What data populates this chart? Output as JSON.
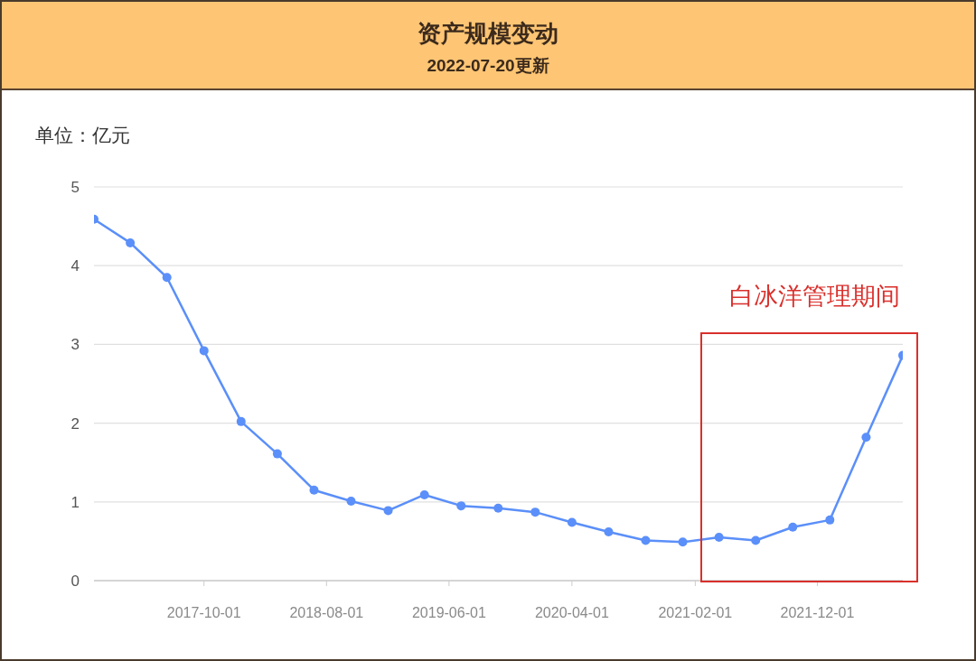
{
  "chart_data": {
    "type": "line",
    "title": "资产规模变动",
    "subtitle": "2022-07-20更新",
    "ylabel": "单位：亿元",
    "x": [
      "2017-01-01",
      "2017-04-01",
      "2017-07-01",
      "2017-10-01",
      "2018-01-01",
      "2018-04-01",
      "2018-07-01",
      "2018-10-01",
      "2019-01-01",
      "2019-04-01",
      "2019-07-01",
      "2019-10-01",
      "2020-01-01",
      "2020-04-01",
      "2020-07-01",
      "2020-10-01",
      "2021-01-01",
      "2021-04-01",
      "2021-07-01",
      "2021-10-01",
      "2022-01-01",
      "2022-04-01",
      "2022-07-01"
    ],
    "values": [
      4.59,
      4.29,
      3.85,
      2.92,
      2.02,
      1.61,
      1.15,
      1.01,
      0.89,
      1.09,
      0.95,
      0.92,
      0.87,
      0.74,
      0.62,
      0.51,
      0.49,
      0.55,
      0.51,
      0.68,
      0.77,
      1.82,
      2.86
    ],
    "color": "#5b8ff9",
    "marker": "circle",
    "line_style": "solid",
    "xlim": [
      "2017-01-01",
      "2022-07-01"
    ],
    "xticks": [
      "2017-10-01",
      "2018-08-01",
      "2019-06-01",
      "2020-04-01",
      "2021-02-01",
      "2021-12-01"
    ],
    "ylim": [
      0,
      5
    ],
    "yticks": [
      0,
      1,
      2,
      3,
      4,
      5
    ],
    "grid": "y",
    "annotations": [
      "白冰洋管理期间"
    ]
  }
}
